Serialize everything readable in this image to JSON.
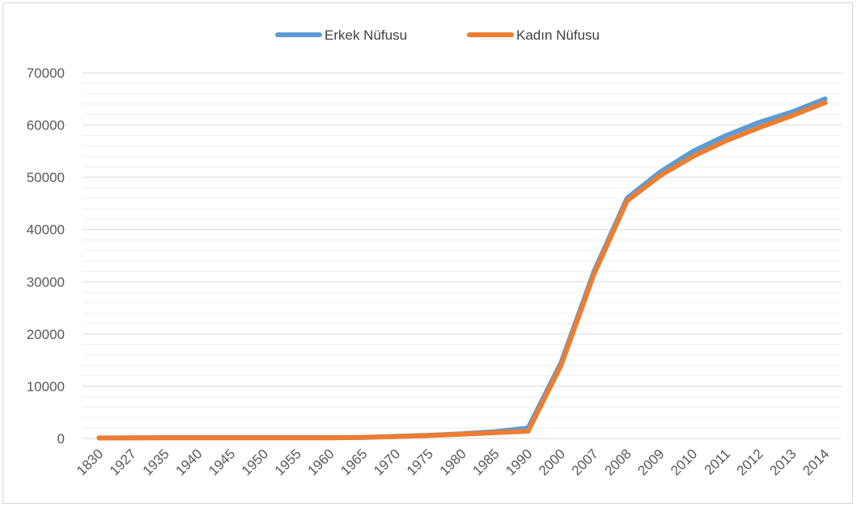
{
  "chart_data": {
    "type": "line",
    "title": "",
    "xlabel": "",
    "ylabel": "",
    "categories": [
      "1830",
      "1927",
      "1935",
      "1940",
      "1945",
      "1950",
      "1955",
      "1960",
      "1965",
      "1970",
      "1975",
      "1980",
      "1985",
      "1990",
      "2000",
      "2007",
      "2008",
      "2009",
      "2010",
      "2011",
      "2012",
      "2013",
      "2014"
    ],
    "ylim": [
      0,
      70000
    ],
    "yticks": [
      0,
      10000,
      20000,
      30000,
      40000,
      50000,
      60000,
      70000
    ],
    "grid": true,
    "legend_position": "top-center",
    "series": [
      {
        "name": "Erkek Nüfusu",
        "color": "#5B9BD5",
        "values": [
          100,
          120,
          150,
          150,
          150,
          150,
          150,
          150,
          200,
          400,
          600,
          900,
          1300,
          2000,
          14500,
          32000,
          46000,
          51000,
          55000,
          58000,
          60500,
          62500,
          65000
        ]
      },
      {
        "name": "Kadın Nüfusu",
        "color": "#ED7D31",
        "values": [
          80,
          100,
          130,
          130,
          130,
          130,
          130,
          130,
          180,
          350,
          550,
          800,
          1100,
          1400,
          14000,
          31500,
          45500,
          50300,
          54000,
          57000,
          59500,
          61800,
          64300
        ]
      }
    ]
  }
}
